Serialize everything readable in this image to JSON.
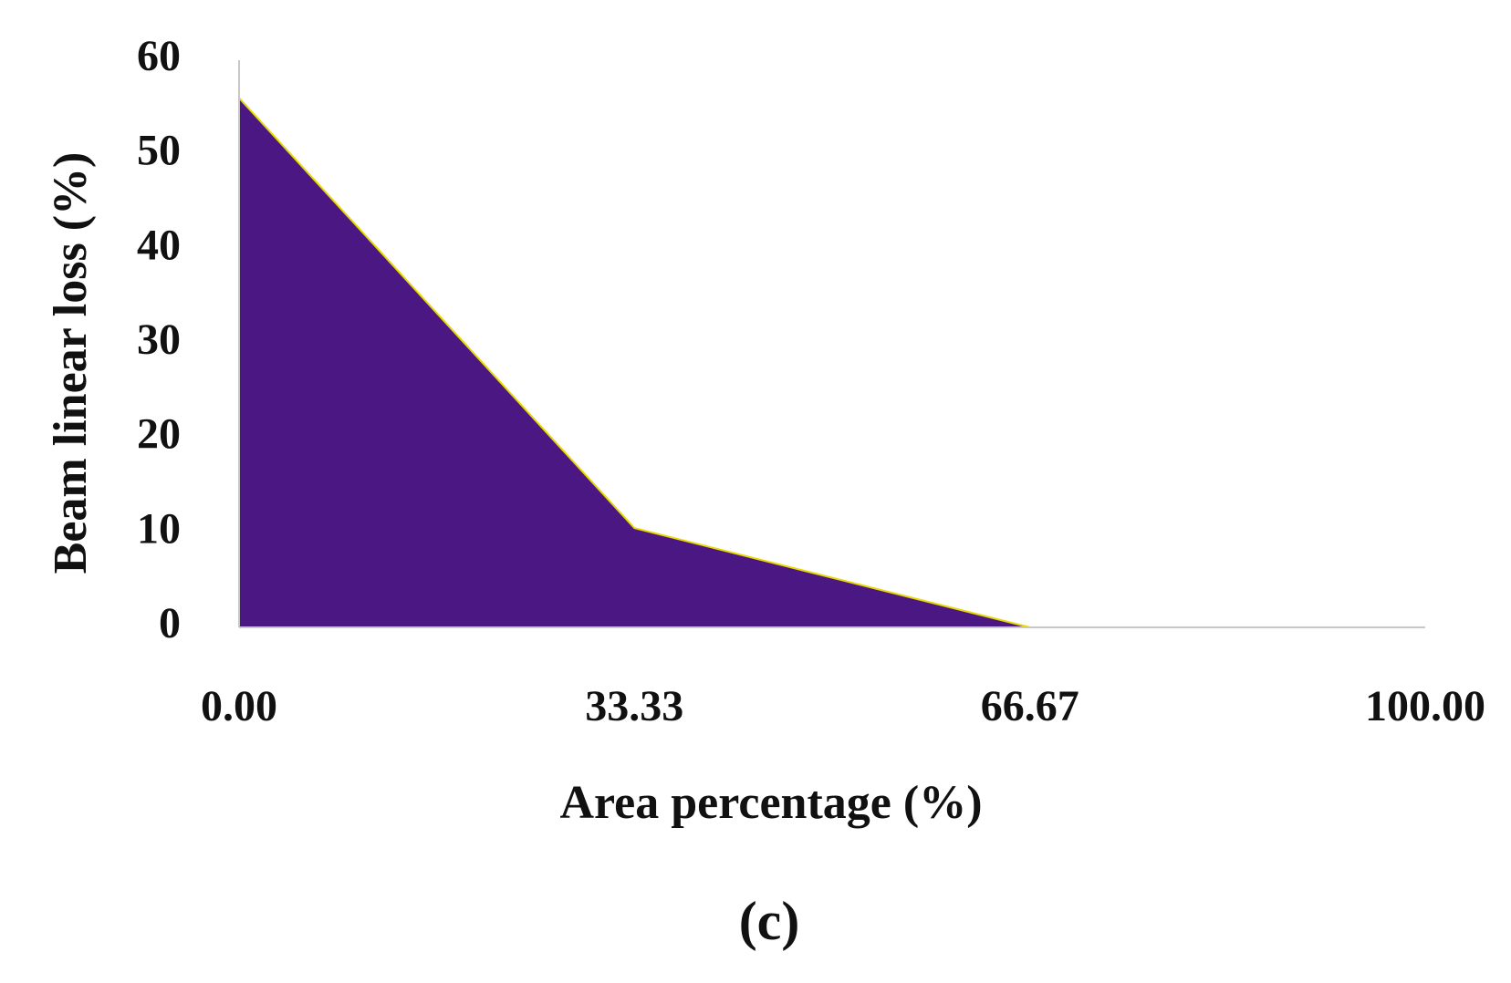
{
  "chart_data": {
    "type": "area",
    "x": [
      0,
      33.33,
      66.67,
      100
    ],
    "values": [
      56,
      10.5,
      0,
      0
    ],
    "color": "#4b1883",
    "line_color": "#e8d800",
    "xlim": [
      0,
      100
    ],
    "xticks": [
      {
        "value": 0,
        "label": "0.00"
      },
      33.33,
      66.67,
      {
        "value": 100,
        "label": "100.00"
      }
    ],
    "ylim": [
      0,
      60
    ],
    "yticks": [
      0,
      10,
      20,
      30,
      40,
      50,
      60
    ],
    "grid": false,
    "x_label": "Area percentage (%)",
    "y_label": "Beam linear loss (%)",
    "caption": "(c)"
  }
}
